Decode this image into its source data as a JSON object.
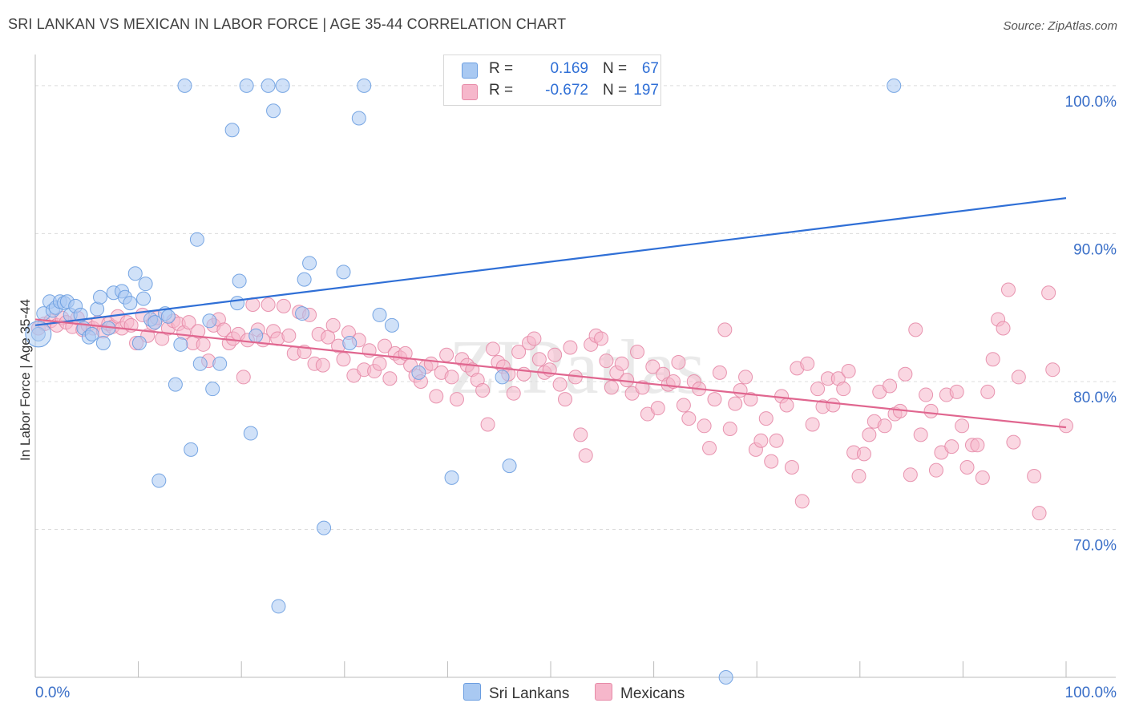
{
  "header": {
    "title": "SRI LANKAN VS MEXICAN IN LABOR FORCE | AGE 35-44 CORRELATION CHART",
    "source": "Source: ZipAtlas.com"
  },
  "watermark": "ZIPatlas",
  "legend": {
    "r_label": "R =",
    "n_label": "N =",
    "rows": [
      {
        "name": "Sri Lankans",
        "r": "0.169",
        "n": "67",
        "color": "#a9c9f2",
        "stroke": "#6a9de0"
      },
      {
        "name": "Mexicans",
        "r": "-0.672",
        "n": "197",
        "color": "#f6b7cb",
        "stroke": "#e68aa7"
      }
    ]
  },
  "chart_data": {
    "type": "scatter",
    "title": "SRI LANKAN VS MEXICAN IN LABOR FORCE | AGE 35-44 CORRELATION CHART",
    "xlabel": "",
    "ylabel": "In Labor Force | Age 35-44",
    "xlim": [
      0,
      100
    ],
    "ylim": [
      60,
      102
    ],
    "x_tick_labels": [
      "0.0%",
      "100.0%"
    ],
    "y_ticks": [
      70,
      80,
      90,
      100
    ],
    "y_tick_labels": [
      "70.0%",
      "80.0%",
      "90.0%",
      "100.0%"
    ],
    "grid": true,
    "legend_position": "top-center",
    "series": [
      {
        "name": "Sri Lankans",
        "color": "#a9c9f2",
        "line_color": "#2f6fd6",
        "trend": {
          "x": [
            0,
            100
          ],
          "y": [
            83.8,
            92.4
          ]
        },
        "points": [
          [
            0.3,
            83.2
          ],
          [
            0.8,
            84.6
          ],
          [
            1.4,
            85.4
          ],
          [
            1.7,
            84.8
          ],
          [
            2.0,
            85.0
          ],
          [
            2.4,
            85.4
          ],
          [
            2.8,
            85.3
          ],
          [
            3.1,
            85.4
          ],
          [
            3.4,
            84.5
          ],
          [
            3.9,
            85.1
          ],
          [
            4.4,
            84.5
          ],
          [
            4.7,
            83.6
          ],
          [
            5.2,
            83.0
          ],
          [
            5.5,
            83.2
          ],
          [
            6.0,
            84.9
          ],
          [
            6.3,
            85.7
          ],
          [
            6.6,
            82.6
          ],
          [
            7.1,
            83.6
          ],
          [
            7.6,
            86.0
          ],
          [
            8.4,
            86.1
          ],
          [
            8.7,
            85.7
          ],
          [
            9.2,
            85.3
          ],
          [
            9.7,
            87.3
          ],
          [
            10.1,
            82.6
          ],
          [
            10.5,
            85.6
          ],
          [
            10.7,
            86.6
          ],
          [
            11.2,
            84.2
          ],
          [
            11.6,
            84.0
          ],
          [
            12.0,
            73.3
          ],
          [
            12.6,
            84.6
          ],
          [
            12.9,
            84.4
          ],
          [
            13.6,
            79.8
          ],
          [
            14.1,
            82.5
          ],
          [
            14.5,
            100.0
          ],
          [
            15.1,
            75.4
          ],
          [
            15.7,
            89.6
          ],
          [
            16.0,
            81.2
          ],
          [
            16.9,
            84.1
          ],
          [
            17.2,
            79.5
          ],
          [
            17.9,
            81.2
          ],
          [
            19.1,
            97.0
          ],
          [
            19.6,
            85.3
          ],
          [
            19.8,
            86.8
          ],
          [
            20.5,
            100.0
          ],
          [
            20.9,
            76.5
          ],
          [
            21.4,
            83.1
          ],
          [
            22.6,
            100.0
          ],
          [
            23.1,
            98.3
          ],
          [
            23.6,
            64.8
          ],
          [
            24.0,
            100.0
          ],
          [
            25.9,
            84.6
          ],
          [
            26.1,
            86.9
          ],
          [
            26.6,
            88.0
          ],
          [
            28.0,
            70.1
          ],
          [
            29.9,
            87.4
          ],
          [
            30.5,
            82.6
          ],
          [
            31.4,
            97.8
          ],
          [
            31.9,
            100.0
          ],
          [
            33.4,
            84.5
          ],
          [
            34.6,
            83.8
          ],
          [
            37.2,
            80.6
          ],
          [
            40.4,
            73.5
          ],
          [
            45.3,
            80.3
          ],
          [
            46.0,
            74.3
          ],
          [
            53.9,
            100.0
          ],
          [
            83.3,
            100.0
          ],
          [
            67.0,
            60.0
          ]
        ]
      },
      {
        "name": "Mexicans",
        "color": "#f6b7cb",
        "line_color": "#e0668f",
        "trend": {
          "x": [
            0,
            100
          ],
          "y": [
            84.2,
            76.9
          ]
        },
        "points": [
          [
            0.3,
            83.6
          ],
          [
            0.9,
            83.9
          ],
          [
            1.5,
            84.1
          ],
          [
            2.1,
            83.8
          ],
          [
            2.6,
            84.3
          ],
          [
            3.0,
            84.0
          ],
          [
            3.6,
            83.7
          ],
          [
            4.1,
            84.3
          ],
          [
            4.6,
            83.5
          ],
          [
            5.1,
            83.8
          ],
          [
            5.6,
            83.6
          ],
          [
            6.1,
            84.0
          ],
          [
            6.6,
            83.4
          ],
          [
            7.1,
            83.9
          ],
          [
            7.5,
            83.7
          ],
          [
            8.0,
            84.4
          ],
          [
            8.4,
            83.6
          ],
          [
            8.9,
            84.0
          ],
          [
            9.3,
            83.8
          ],
          [
            9.8,
            82.6
          ],
          [
            10.4,
            84.5
          ],
          [
            10.9,
            83.1
          ],
          [
            11.4,
            83.9
          ],
          [
            11.8,
            84.3
          ],
          [
            12.3,
            82.9
          ],
          [
            12.9,
            83.6
          ],
          [
            13.4,
            84.1
          ],
          [
            13.9,
            83.9
          ],
          [
            14.4,
            83.3
          ],
          [
            14.9,
            84.0
          ],
          [
            15.3,
            82.6
          ],
          [
            15.8,
            83.4
          ],
          [
            16.3,
            82.5
          ],
          [
            16.8,
            81.4
          ],
          [
            17.3,
            83.8
          ],
          [
            17.8,
            84.2
          ],
          [
            18.3,
            83.5
          ],
          [
            18.8,
            82.6
          ],
          [
            19.2,
            82.9
          ],
          [
            19.7,
            83.2
          ],
          [
            20.2,
            80.3
          ],
          [
            20.6,
            82.8
          ],
          [
            21.1,
            85.2
          ],
          [
            21.6,
            83.5
          ],
          [
            22.1,
            82.8
          ],
          [
            22.6,
            85.2
          ],
          [
            23.1,
            83.4
          ],
          [
            23.5,
            82.9
          ],
          [
            24.1,
            85.1
          ],
          [
            24.6,
            83.1
          ],
          [
            25.1,
            81.9
          ],
          [
            25.6,
            84.7
          ],
          [
            26.1,
            82.0
          ],
          [
            26.6,
            84.5
          ],
          [
            27.1,
            81.2
          ],
          [
            27.5,
            83.2
          ],
          [
            27.9,
            81.1
          ],
          [
            28.4,
            83.0
          ],
          [
            28.9,
            83.8
          ],
          [
            29.4,
            82.4
          ],
          [
            29.9,
            81.5
          ],
          [
            30.4,
            83.3
          ],
          [
            30.9,
            80.4
          ],
          [
            31.4,
            82.8
          ],
          [
            31.9,
            80.8
          ],
          [
            32.4,
            82.1
          ],
          [
            32.9,
            80.7
          ],
          [
            33.4,
            81.2
          ],
          [
            33.9,
            82.4
          ],
          [
            34.4,
            80.2
          ],
          [
            34.9,
            81.9
          ],
          [
            35.4,
            81.6
          ],
          [
            35.9,
            81.9
          ],
          [
            36.4,
            81.1
          ],
          [
            36.9,
            80.4
          ],
          [
            37.4,
            80.0
          ],
          [
            37.9,
            81.0
          ],
          [
            38.4,
            81.2
          ],
          [
            38.9,
            79.0
          ],
          [
            39.4,
            80.6
          ],
          [
            39.9,
            81.8
          ],
          [
            40.4,
            80.3
          ],
          [
            40.9,
            78.8
          ],
          [
            41.4,
            81.5
          ],
          [
            41.9,
            81.1
          ],
          [
            42.4,
            80.8
          ],
          [
            42.9,
            80.1
          ],
          [
            43.4,
            79.4
          ],
          [
            43.9,
            77.1
          ],
          [
            44.4,
            82.2
          ],
          [
            44.9,
            81.3
          ],
          [
            45.4,
            81.0
          ],
          [
            45.9,
            80.5
          ],
          [
            46.4,
            79.2
          ],
          [
            46.9,
            82.0
          ],
          [
            47.4,
            80.5
          ],
          [
            47.9,
            82.6
          ],
          [
            48.4,
            82.9
          ],
          [
            48.9,
            81.5
          ],
          [
            49.4,
            80.6
          ],
          [
            49.9,
            80.8
          ],
          [
            50.4,
            81.8
          ],
          [
            50.9,
            79.8
          ],
          [
            51.4,
            78.8
          ],
          [
            51.9,
            82.3
          ],
          [
            52.4,
            80.3
          ],
          [
            52.9,
            76.4
          ],
          [
            53.4,
            75.0
          ],
          [
            53.9,
            82.5
          ],
          [
            54.4,
            83.1
          ],
          [
            54.9,
            82.9
          ],
          [
            55.4,
            81.4
          ],
          [
            55.9,
            79.6
          ],
          [
            56.4,
            80.6
          ],
          [
            56.9,
            81.2
          ],
          [
            57.4,
            80.1
          ],
          [
            57.9,
            79.2
          ],
          [
            58.4,
            82.0
          ],
          [
            58.9,
            79.6
          ],
          [
            59.4,
            77.8
          ],
          [
            59.9,
            81.0
          ],
          [
            60.4,
            78.2
          ],
          [
            60.9,
            80.5
          ],
          [
            61.4,
            79.8
          ],
          [
            61.9,
            80.0
          ],
          [
            62.4,
            81.3
          ],
          [
            62.9,
            78.4
          ],
          [
            63.4,
            77.5
          ],
          [
            63.9,
            80.0
          ],
          [
            64.4,
            79.5
          ],
          [
            64.9,
            77.0
          ],
          [
            65.4,
            75.5
          ],
          [
            65.9,
            78.8
          ],
          [
            66.4,
            80.6
          ],
          [
            66.9,
            83.5
          ],
          [
            67.4,
            76.8
          ],
          [
            67.9,
            78.5
          ],
          [
            68.4,
            79.4
          ],
          [
            68.9,
            80.3
          ],
          [
            69.4,
            78.8
          ],
          [
            69.9,
            75.4
          ],
          [
            70.4,
            76.0
          ],
          [
            70.9,
            77.5
          ],
          [
            71.4,
            74.6
          ],
          [
            71.9,
            76.0
          ],
          [
            72.4,
            79.0
          ],
          [
            72.9,
            78.4
          ],
          [
            73.4,
            74.2
          ],
          [
            73.9,
            80.9
          ],
          [
            74.4,
            71.9
          ],
          [
            74.9,
            81.2
          ],
          [
            75.4,
            77.1
          ],
          [
            75.9,
            79.5
          ],
          [
            76.4,
            78.3
          ],
          [
            76.9,
            80.2
          ],
          [
            77.4,
            78.4
          ],
          [
            77.9,
            80.2
          ],
          [
            78.4,
            79.5
          ],
          [
            78.9,
            80.7
          ],
          [
            79.4,
            75.2
          ],
          [
            79.9,
            73.6
          ],
          [
            80.4,
            75.1
          ],
          [
            80.9,
            76.4
          ],
          [
            81.4,
            77.3
          ],
          [
            81.9,
            79.3
          ],
          [
            82.4,
            77.0
          ],
          [
            82.9,
            79.7
          ],
          [
            83.4,
            77.8
          ],
          [
            83.9,
            78.0
          ],
          [
            84.4,
            80.5
          ],
          [
            84.9,
            73.7
          ],
          [
            85.4,
            83.5
          ],
          [
            85.9,
            76.4
          ],
          [
            86.4,
            79.1
          ],
          [
            86.9,
            78.0
          ],
          [
            87.4,
            74.0
          ],
          [
            87.9,
            75.2
          ],
          [
            88.4,
            79.1
          ],
          [
            88.9,
            75.6
          ],
          [
            89.4,
            79.3
          ],
          [
            89.9,
            77.0
          ],
          [
            90.4,
            74.2
          ],
          [
            90.9,
            75.7
          ],
          [
            91.4,
            75.7
          ],
          [
            91.9,
            73.5
          ],
          [
            92.4,
            79.3
          ],
          [
            92.9,
            81.5
          ],
          [
            93.4,
            84.2
          ],
          [
            93.9,
            83.6
          ],
          [
            94.4,
            86.2
          ],
          [
            94.9,
            75.9
          ],
          [
            95.4,
            80.3
          ],
          [
            96.9,
            73.6
          ],
          [
            97.4,
            71.1
          ],
          [
            98.3,
            86.0
          ],
          [
            98.7,
            80.8
          ],
          [
            100.0,
            77.0
          ]
        ]
      }
    ]
  },
  "x_axis": {
    "left_label": "0.0%",
    "right_label": "100.0%"
  },
  "bottom_legend": [
    {
      "name": "Sri Lankans",
      "color": "#a9c9f2",
      "stroke": "#6a9de0"
    },
    {
      "name": "Mexicans",
      "color": "#f6b7cb",
      "stroke": "#e68aa7"
    }
  ]
}
